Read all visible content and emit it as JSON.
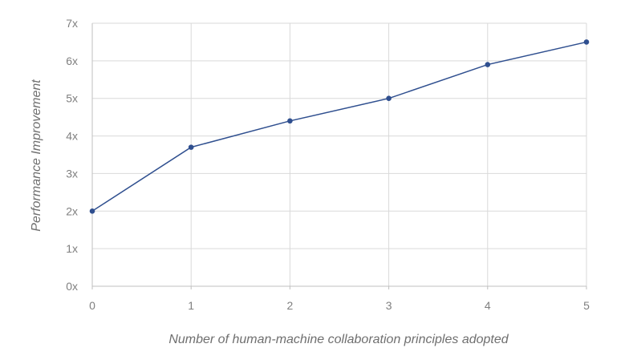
{
  "chart_data": {
    "type": "line",
    "title": "",
    "xlabel": "Number of human-machine collaboration principles adopted",
    "ylabel": "Performance Improvement",
    "x": [
      0,
      1,
      2,
      3,
      4,
      5
    ],
    "x_tick_labels": [
      "0",
      "1",
      "2",
      "3",
      "4",
      "5"
    ],
    "y_ticks": [
      0,
      1,
      2,
      3,
      4,
      5,
      6,
      7
    ],
    "y_tick_labels": [
      "0x",
      "1x",
      "2x",
      "3x",
      "4x",
      "5x",
      "6x",
      "7x"
    ],
    "xlim": [
      0,
      5
    ],
    "ylim": [
      0,
      7
    ],
    "grid": true,
    "legend": "none",
    "series": [
      {
        "values": [
          2.0,
          3.7,
          4.4,
          5.0,
          5.9,
          6.5
        ],
        "color": "#2f4f8f"
      }
    ],
    "colors": {
      "grid": "#d9d9d9",
      "axis": "#bfbfbf",
      "text": "#7f7f7f"
    }
  }
}
